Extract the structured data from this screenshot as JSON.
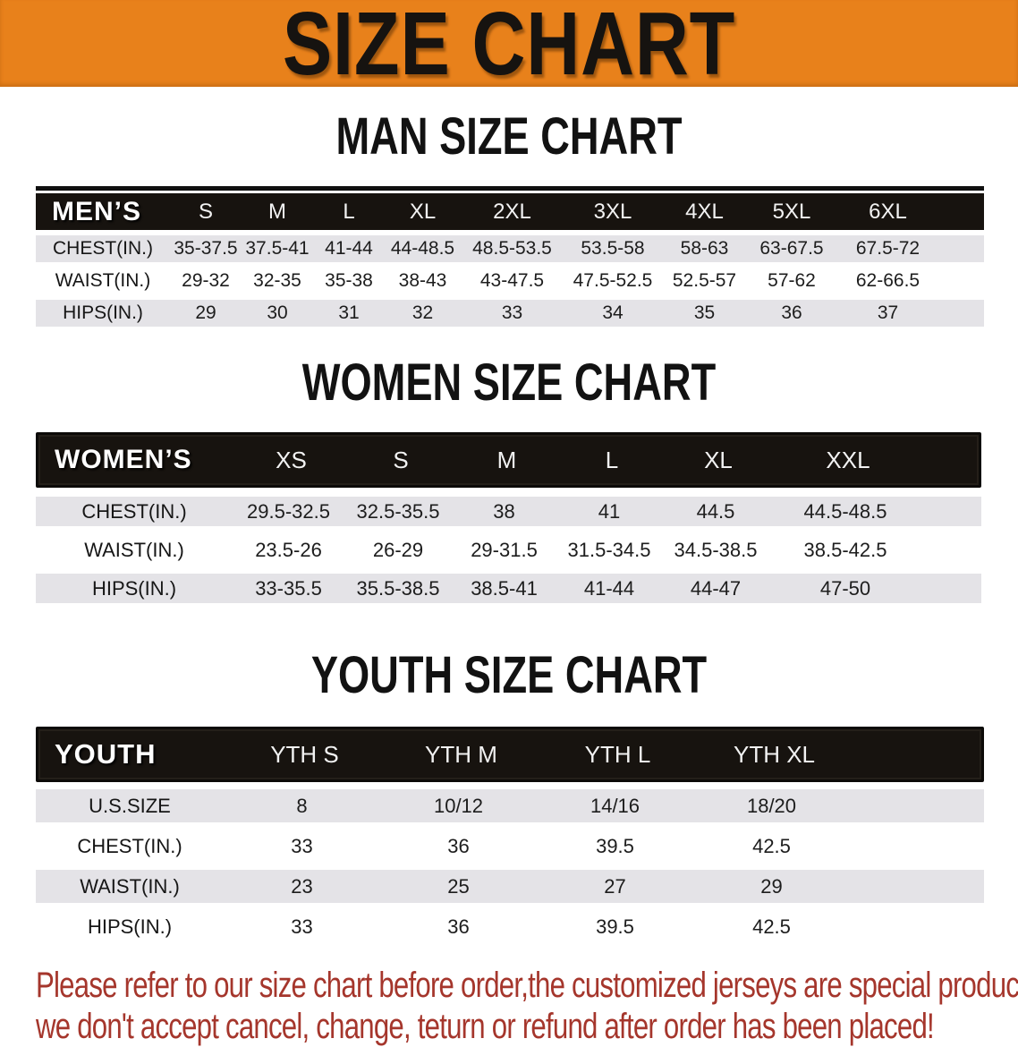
{
  "banner": {
    "title": "SIZE CHART"
  },
  "sections": [
    {
      "heading": "MAN SIZE CHART",
      "table": {
        "header_label": "MEN’S",
        "columns": [
          "S",
          "M",
          "L",
          "XL",
          "2XL",
          "3XL",
          "4XL",
          "5XL",
          "6XL"
        ],
        "rows": [
          {
            "label": "CHEST(IN.)",
            "values": [
              "35-37.5",
              "37.5-41",
              "41-44",
              "44-48.5",
              "48.5-53.5",
              "53.5-58",
              "58-63",
              "63-67.5",
              "67.5-72"
            ]
          },
          {
            "label": "WAIST(IN.)",
            "values": [
              "29-32",
              "32-35",
              "35-38",
              "38-43",
              "43-47.5",
              "47.5-52.5",
              "52.5-57",
              "57-62",
              "62-66.5"
            ]
          },
          {
            "label": "HIPS(IN.)",
            "values": [
              "29",
              "30",
              "31",
              "32",
              "33",
              "34",
              "35",
              "36",
              "37"
            ]
          }
        ]
      }
    },
    {
      "heading": "WOMEN SIZE CHART",
      "table": {
        "header_label": "WOMEN’S",
        "columns": [
          "XS",
          "S",
          "M",
          "L",
          "XL",
          "XXL"
        ],
        "rows": [
          {
            "label": "CHEST(IN.)",
            "values": [
              "29.5-32.5",
              "32.5-35.5",
              "38",
              "41",
              "44.5",
              "44.5-48.5"
            ]
          },
          {
            "label": "WAIST(IN.)",
            "values": [
              "23.5-26",
              "26-29",
              "29-31.5",
              "31.5-34.5",
              "34.5-38.5",
              "38.5-42.5"
            ]
          },
          {
            "label": "HIPS(IN.)",
            "values": [
              "33-35.5",
              "35.5-38.5",
              "38.5-41",
              "41-44",
              "44-47",
              "47-50"
            ]
          }
        ]
      }
    },
    {
      "heading": "YOUTH SIZE CHART",
      "table": {
        "header_label": "YOUTH",
        "columns": [
          "YTH S",
          "YTH M",
          "YTH L",
          "YTH XL"
        ],
        "rows": [
          {
            "label": "U.S.SIZE",
            "values": [
              "8",
              "10/12",
              "14/16",
              "18/20"
            ]
          },
          {
            "label": "CHEST(IN.)",
            "values": [
              "33",
              "36",
              "39.5",
              "42.5"
            ]
          },
          {
            "label": "WAIST(IN.)",
            "values": [
              "23",
              "25",
              "27",
              "29"
            ]
          },
          {
            "label": "HIPS(IN.)",
            "values": [
              "33",
              "36",
              "39.5",
              "42.5"
            ]
          }
        ]
      }
    }
  ],
  "disclaimer": {
    "line1": "Please refer to our size chart before order,the customized jerseys are special products,",
    "line2": "we don't accept cancel, change, teturn or refund after order has been placed!"
  },
  "colors": {
    "banner_orange": "#E8811B",
    "table_header_black": "#17130F",
    "row_gray": "#E4E3E7",
    "disclaimer_red": "#A5362C"
  }
}
